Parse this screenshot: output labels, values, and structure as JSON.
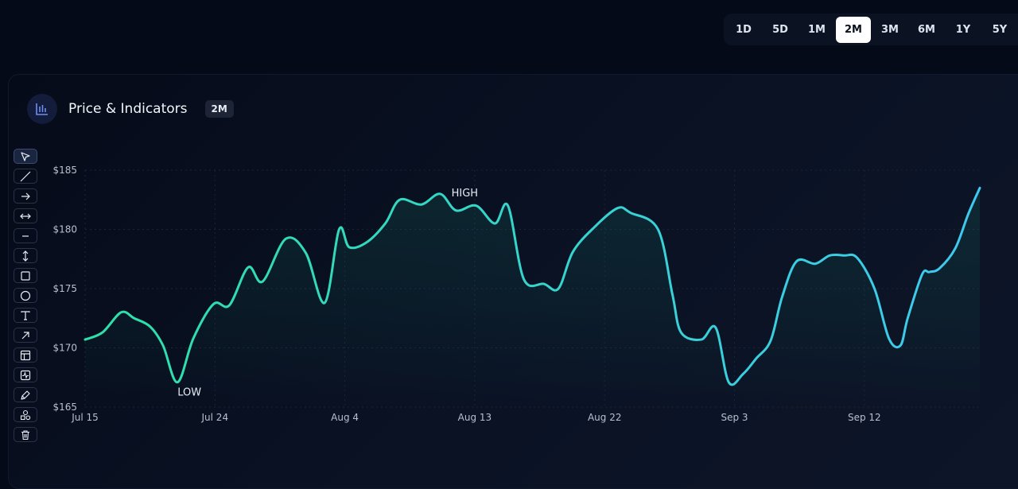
{
  "range_selector": {
    "options": [
      "1D",
      "5D",
      "1M",
      "2M",
      "3M",
      "6M",
      "1Y",
      "5Y"
    ],
    "selected": "2M"
  },
  "panel": {
    "title": "Price & Indicators",
    "badge": "2M"
  },
  "toolbar": {
    "tools": [
      "cursor-icon",
      "line-icon",
      "arrow-right-icon",
      "horizontal-arrows-icon",
      "horizontal-line-icon",
      "vertical-arrows-icon",
      "rectangle-icon",
      "circle-icon",
      "text-icon",
      "diagonal-arrow-icon",
      "layout-icon",
      "activity-icon",
      "pen-icon",
      "shapes-icon",
      "trash-icon"
    ]
  },
  "colors": {
    "line_start": "#2ee0a8",
    "line_end": "#3ec9f0",
    "background": "#050a18"
  },
  "chart_data": {
    "type": "area",
    "x_ticks": [
      "Jul 15",
      "Jul 24",
      "Aug 4",
      "Aug 13",
      "Aug 22",
      "Sep 3",
      "Sep 12"
    ],
    "y_ticks": [
      "$165",
      "$170",
      "$175",
      "$180",
      "$185"
    ],
    "ylim": [
      165,
      185
    ],
    "x_range": [
      0,
      62
    ],
    "grid": true,
    "annotations": [
      {
        "text": "LOW",
        "x": 6.4,
        "y": 167.1
      },
      {
        "text": "HIGH",
        "x": 25.7,
        "y": 183.0
      }
    ],
    "series": [
      {
        "x": [
          0,
          1.2,
          2.5,
          3.4,
          4.5,
          5.4,
          6.4,
          7.5,
          8.9,
          10.0,
          11.3,
          12.3,
          13.9,
          15.3,
          16.6,
          17.6,
          18.3,
          19.5,
          20.8,
          21.8,
          23.3,
          24.6,
          25.7,
          27.1,
          28.4,
          29.3,
          30.4,
          31.8,
          32.8,
          33.8,
          35.3,
          36.9,
          37.8,
          39.7,
          40.7,
          41.3,
          42.7,
          43.7,
          44.6,
          45.6,
          46.5,
          47.5,
          48.3,
          49.3,
          50.6,
          51.6,
          52.6,
          53.5,
          54.7,
          55.7,
          56.5,
          57.0,
          58.0,
          58.5,
          59.2,
          60.3,
          61.2,
          62.0
        ],
        "y": [
          170.7,
          171.3,
          173.0,
          172.5,
          171.8,
          170.2,
          167.1,
          170.8,
          173.7,
          173.6,
          176.8,
          175.6,
          179.2,
          178.0,
          173.8,
          180.0,
          178.5,
          178.9,
          180.5,
          182.5,
          182.1,
          183.0,
          181.6,
          182.0,
          180.5,
          182.0,
          175.8,
          175.4,
          175.0,
          178.1,
          180.2,
          181.8,
          181.4,
          180.0,
          174.5,
          171.3,
          170.7,
          171.7,
          167.1,
          167.8,
          169.1,
          170.6,
          174.3,
          177.3,
          177.1,
          177.8,
          177.8,
          177.6,
          175.0,
          170.8,
          170.2,
          172.5,
          176.2,
          176.4,
          176.7,
          178.4,
          181.3,
          183.5
        ]
      }
    ]
  }
}
